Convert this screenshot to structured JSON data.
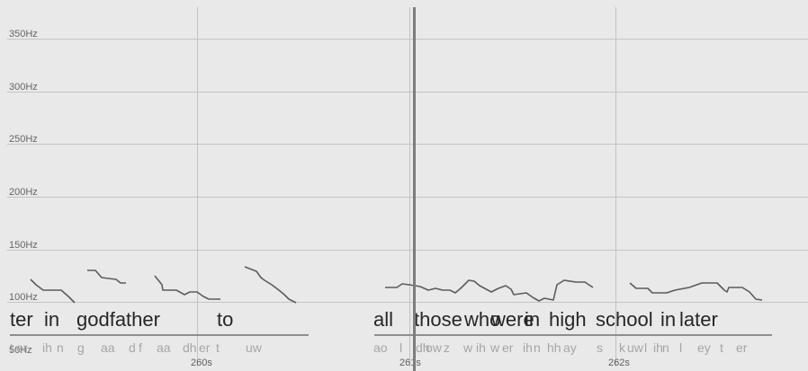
{
  "frequency_axis": {
    "labels": [
      "350Hz",
      "300Hz",
      "250Hz",
      "200Hz",
      "150Hz",
      "100Hz",
      "50Hz"
    ]
  },
  "time_axis": {
    "labels": [
      "260s",
      "261s",
      "262s"
    ]
  },
  "words": [
    "ter",
    "in",
    "godfather",
    "to",
    "all",
    "those",
    "who",
    "were",
    "in",
    "high",
    "school",
    "in",
    "later"
  ],
  "phones": [
    "t",
    "er",
    "ih",
    "n",
    "g",
    "aa",
    "d",
    "f",
    "aa",
    "dh",
    "er",
    "t",
    "uw",
    "ao",
    "l",
    "dh",
    "ow",
    "z",
    "w",
    "ih",
    "w",
    "er",
    "ih",
    "n",
    "hh",
    "ay",
    "s",
    "k",
    "uw",
    "l",
    "ih",
    "n",
    "l",
    "ey",
    "t",
    "er"
  ],
  "pitch_segments": [
    [
      [
        34,
        311
      ],
      [
        40,
        317
      ],
      [
        48,
        323
      ],
      [
        68,
        323
      ],
      [
        76,
        330
      ],
      [
        83,
        337
      ]
    ],
    [
      [
        97,
        301
      ],
      [
        106,
        301
      ],
      [
        113,
        309
      ],
      [
        129,
        311
      ],
      [
        134,
        315
      ],
      [
        140,
        315
      ]
    ],
    [
      [
        172,
        307
      ],
      [
        180,
        317
      ],
      [
        181,
        323
      ],
      [
        196,
        323
      ],
      [
        205,
        328
      ],
      [
        211,
        325
      ],
      [
        219,
        325
      ],
      [
        226,
        330
      ],
      [
        232,
        333
      ],
      [
        245,
        333
      ]
    ],
    [
      [
        272,
        297
      ],
      [
        285,
        302
      ],
      [
        290,
        309
      ],
      [
        294,
        312
      ],
      [
        302,
        317
      ],
      [
        310,
        323
      ],
      [
        316,
        328
      ],
      [
        321,
        333
      ],
      [
        329,
        337
      ]
    ],
    [
      [
        428,
        320
      ],
      [
        441,
        320
      ],
      [
        447,
        316
      ],
      [
        455,
        317
      ],
      [
        461,
        318
      ],
      [
        467,
        319
      ],
      [
        476,
        323
      ],
      [
        484,
        321
      ],
      [
        492,
        323
      ],
      [
        500,
        323
      ],
      [
        506,
        326
      ],
      [
        513,
        320
      ],
      [
        521,
        312
      ],
      [
        527,
        313
      ],
      [
        533,
        318
      ],
      [
        546,
        325
      ],
      [
        554,
        321
      ],
      [
        562,
        318
      ],
      [
        568,
        322
      ],
      [
        571,
        328
      ],
      [
        585,
        326
      ],
      [
        592,
        331
      ],
      [
        599,
        335
      ],
      [
        605,
        332
      ],
      [
        615,
        334
      ],
      [
        619,
        317
      ],
      [
        627,
        312
      ],
      [
        640,
        314
      ],
      [
        650,
        314
      ],
      [
        659,
        320
      ]
    ],
    [
      [
        700,
        315
      ],
      [
        707,
        321
      ],
      [
        720,
        321
      ],
      [
        725,
        326
      ],
      [
        741,
        326
      ],
      [
        750,
        323
      ],
      [
        766,
        320
      ],
      [
        780,
        315
      ],
      [
        797,
        315
      ],
      [
        805,
        323
      ],
      [
        808,
        325
      ],
      [
        810,
        320
      ],
      [
        825,
        320
      ],
      [
        833,
        325
      ],
      [
        840,
        333
      ],
      [
        847,
        334
      ]
    ]
  ]
}
